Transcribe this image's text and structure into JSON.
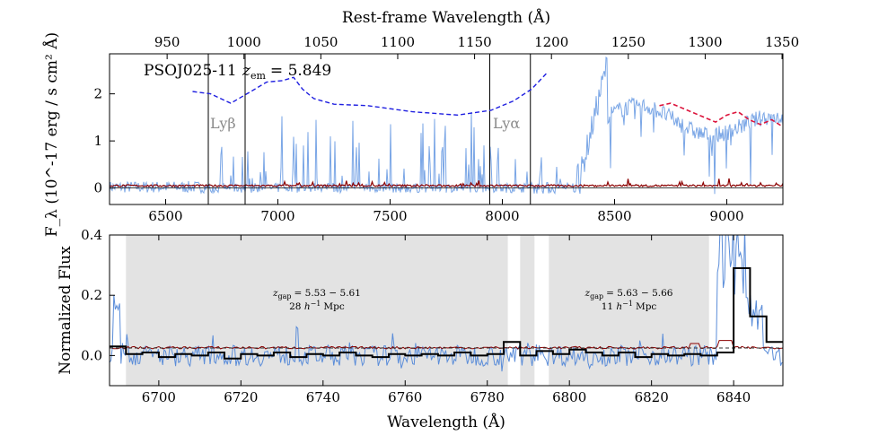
{
  "chart_data": [
    {
      "panel": "top",
      "type": "line",
      "top_xlabel": "Rest-frame Wavelength (Å)",
      "xlabel": "",
      "ylabel": "F_λ (10^-17 erg / s cm² Å)",
      "ylim": [
        -0.35,
        2.85
      ],
      "xlim": [
        6250,
        9250
      ],
      "x_ticks": [
        "6500",
        "7000",
        "7500",
        "8000",
        "8500",
        "9000"
      ],
      "y_ticks": [
        "0",
        "1",
        "2"
      ],
      "top_ticks": [
        "950",
        "1000",
        "1050",
        "1100",
        "1150",
        "1200",
        "1250",
        "1300",
        "1350"
      ],
      "annotation": "PSOJ025-11",
      "z_label": "z",
      "z_sub": "em",
      "z_value": "= 5.849",
      "lines": [
        {
          "label": "Lyβ",
          "x": 6854
        },
        {
          "label": "Lyα",
          "x": 7944
        }
      ],
      "vlines_x": [
        6690,
        6854,
        7944,
        8125
      ],
      "dashed_template": {
        "color": "#1f1fe0",
        "x": [
          6620,
          6700,
          6790,
          6880,
          6950,
          7020,
          7070,
          7110,
          7160,
          7250,
          7400,
          7600,
          7800,
          7950,
          8050,
          8130,
          8200
        ],
        "y": [
          2.05,
          2.0,
          1.8,
          2.05,
          2.25,
          2.28,
          2.35,
          2.1,
          1.9,
          1.78,
          1.75,
          1.62,
          1.55,
          1.65,
          1.85,
          2.1,
          2.45
        ]
      },
      "red_model": {
        "color": "#dc143c",
        "x": [
          8700,
          8750,
          8850,
          8950,
          9000,
          9050,
          9100,
          9150,
          9200,
          9250
        ],
        "y": [
          1.75,
          1.8,
          1.6,
          1.4,
          1.55,
          1.62,
          1.45,
          1.35,
          1.45,
          1.3
        ]
      },
      "colors": {
        "flux": "#7aa6e6",
        "error": "#8b0000"
      }
    },
    {
      "panel": "bottom",
      "type": "line",
      "xlabel": "Wavelength (Å)",
      "ylabel": "Normalized Flux",
      "xlim": [
        6688,
        6852
      ],
      "ylim": [
        -0.1,
        0.4
      ],
      "x_ticks": [
        "6700",
        "6720",
        "6740",
        "6760",
        "6780",
        "6800",
        "6820",
        "6840"
      ],
      "y_ticks": [
        "0.0",
        "0.2",
        "0.4"
      ],
      "gaps": [
        {
          "x0": 6692,
          "x1": 6785,
          "z_sym": "z",
          "z_sub": "gap",
          "z_text": "= 5.53 − 5.61",
          "d_pre": "28",
          "d_h": "h",
          "d_exp": "−1",
          "d_unit": "Mpc"
        },
        {
          "x0": 6788,
          "x1": 6791.5,
          "z_sym": "",
          "z_sub": "",
          "z_text": "",
          "d_pre": "",
          "d_h": "",
          "d_exp": "",
          "d_unit": ""
        },
        {
          "x0": 6795,
          "x1": 6834,
          "z_sym": "z",
          "z_sub": "gap",
          "z_text": "= 5.63 − 5.66",
          "d_pre": "11",
          "d_h": "h",
          "d_exp": "−1",
          "d_unit": "Mpc"
        }
      ],
      "binned_flux": {
        "color": "#000000",
        "x": [
          6688,
          6692,
          6696,
          6700,
          6704,
          6708,
          6712,
          6716,
          6720,
          6724,
          6728,
          6732,
          6736,
          6740,
          6744,
          6748,
          6752,
          6756,
          6760,
          6764,
          6768,
          6772,
          6776,
          6780,
          6784,
          6788,
          6792,
          6796,
          6800,
          6804,
          6808,
          6812,
          6816,
          6820,
          6824,
          6828,
          6832,
          6836,
          6840,
          6844,
          6848,
          6852
        ],
        "y": [
          0.03,
          0.005,
          0.01,
          -0.005,
          0.005,
          0.0,
          0.01,
          -0.01,
          0.005,
          0.0,
          0.01,
          -0.005,
          0.005,
          0.0,
          0.01,
          0.0,
          -0.005,
          0.005,
          0.0,
          0.005,
          0.0,
          0.01,
          0.0,
          0.005,
          0.045,
          0.0,
          0.015,
          0.005,
          0.02,
          0.01,
          0.0,
          0.01,
          -0.005,
          0.005,
          0.0,
          0.005,
          0.0,
          0.01,
          0.29,
          0.13,
          0.045,
          0.015
        ]
      },
      "continuum_level": 0.025,
      "colors": {
        "flux": "#5b8dd9",
        "error": "#8b0000",
        "gap_fill": "#e3e3e3"
      }
    }
  ]
}
